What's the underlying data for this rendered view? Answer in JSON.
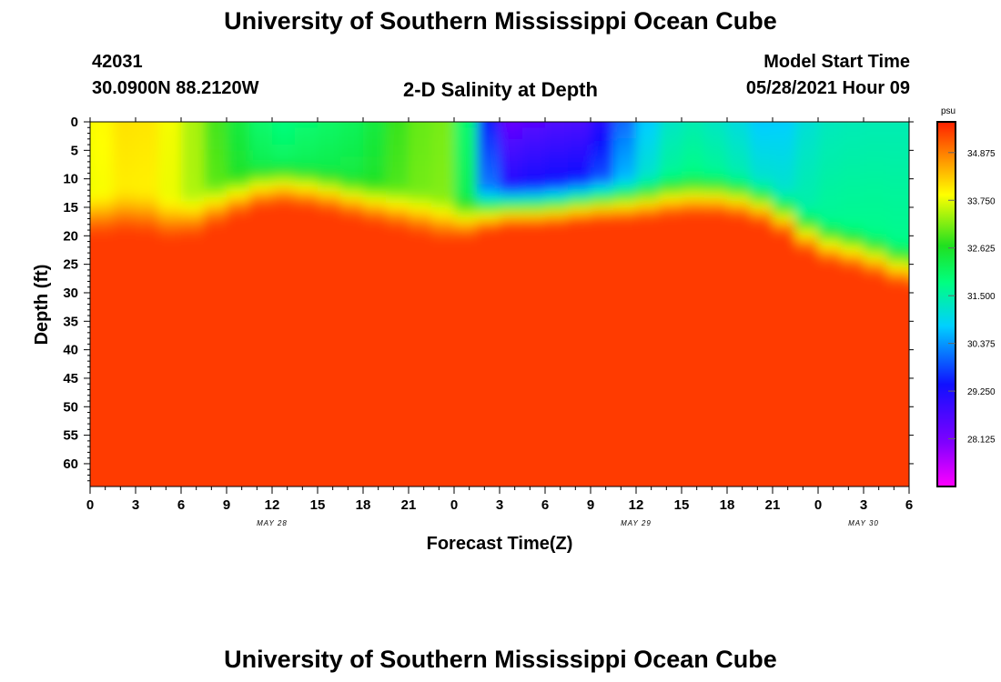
{
  "header": {
    "title_top": "University of Southern Mississippi Ocean Cube",
    "title_bottom": "University of Southern Mississippi Ocean Cube",
    "station_id": "42031",
    "station_coords": "30.0900N  88.2120W",
    "plot_title": "2-D Salinity at Depth",
    "model_label": "Model Start Time",
    "model_time": "05/28/2021 Hour 09"
  },
  "chart_data": {
    "type": "heatmap",
    "title": "2-D Salinity at Depth",
    "xlabel": "Forecast Time(Z)",
    "ylabel": "Depth (ft)",
    "x_ticks": [
      "0",
      "3",
      "6",
      "9",
      "12",
      "15",
      "18",
      "21",
      "0",
      "3",
      "6",
      "9",
      "12",
      "15",
      "18",
      "21",
      "0",
      "3",
      "6"
    ],
    "x_range_hours": [
      0,
      54
    ],
    "date_labels": [
      {
        "text": "MAY 28",
        "hour": 12
      },
      {
        "text": "MAY 29",
        "hour": 36
      },
      {
        "text": "MAY 30",
        "hour": 51
      }
    ],
    "y_ticks": [
      0,
      5,
      10,
      15,
      20,
      25,
      30,
      35,
      40,
      45,
      50,
      55,
      60
    ],
    "y_range_ft": [
      0,
      64
    ],
    "colorbar": {
      "unit": "psu",
      "ticks": [
        "34.875",
        "33.750",
        "32.625",
        "31.500",
        "30.375",
        "29.250",
        "28.125"
      ],
      "tick_values": [
        34.875,
        33.75,
        32.625,
        31.5,
        30.375,
        29.25,
        28.125
      ],
      "range": [
        27.0,
        35.6
      ]
    },
    "surface_salinity": [
      [
        0,
        33.8
      ],
      [
        3,
        34.2
      ],
      [
        6,
        33.7
      ],
      [
        9,
        32.6
      ],
      [
        12,
        31.8
      ],
      [
        15,
        32.0
      ],
      [
        18,
        32.2
      ],
      [
        21,
        33.0
      ],
      [
        24,
        33.2
      ],
      [
        27,
        28.3
      ],
      [
        30,
        28.6
      ],
      [
        33,
        28.7
      ],
      [
        36,
        30.5
      ],
      [
        39,
        31.5
      ],
      [
        42,
        31.2
      ],
      [
        45,
        30.6
      ],
      [
        48,
        31.3
      ],
      [
        51,
        31.4
      ],
      [
        54,
        31.4
      ]
    ],
    "halocline_depth_ft": [
      [
        0,
        15
      ],
      [
        3,
        14
      ],
      [
        6,
        16
      ],
      [
        9,
        12
      ],
      [
        12,
        9
      ],
      [
        15,
        10
      ],
      [
        18,
        12
      ],
      [
        21,
        14
      ],
      [
        24,
        16
      ],
      [
        27,
        13
      ],
      [
        30,
        13
      ],
      [
        33,
        12
      ],
      [
        36,
        12
      ],
      [
        39,
        11
      ],
      [
        42,
        11
      ],
      [
        45,
        13
      ],
      [
        48,
        19
      ],
      [
        51,
        21
      ],
      [
        54,
        24
      ]
    ],
    "deep_salinity": 35.4,
    "colors": {
      "min": "#ff00ff",
      "low": "#2020ff",
      "mid_low": "#00ffff",
      "mid": "#00e000",
      "mid_high": "#ffff00",
      "high": "#ff2200"
    }
  }
}
